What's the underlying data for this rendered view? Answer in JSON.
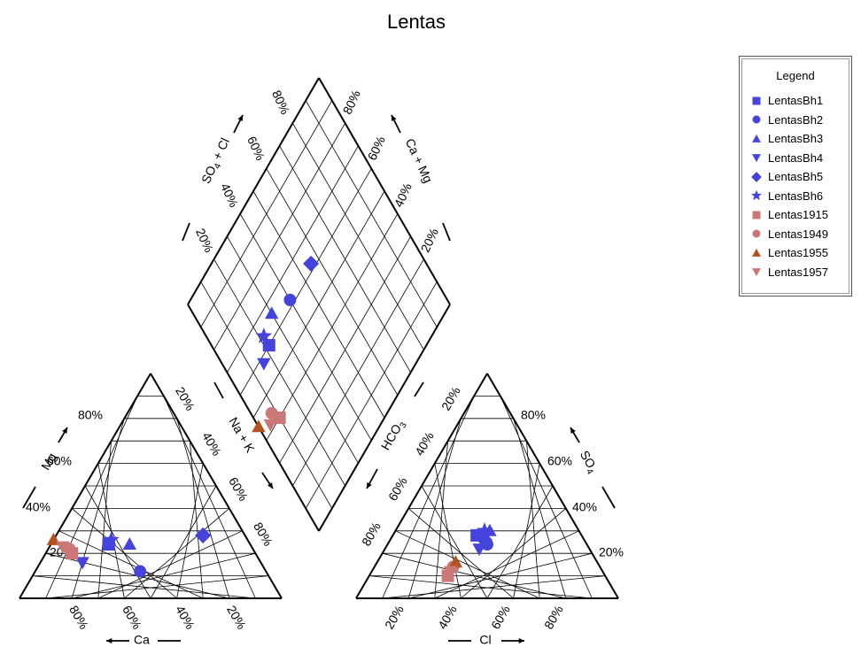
{
  "chart_data": {
    "type": "scatter",
    "subtype": "piper-diagram",
    "title": "Lentas",
    "cation_triangle": {
      "axes": {
        "left": "Mg",
        "bottom": "Ca",
        "right": "Na + K"
      },
      "tick_labels_left": [
        "20%",
        "40%",
        "60%",
        "80%"
      ],
      "tick_labels_bottom": [
        "80%",
        "60%",
        "40%",
        "20%"
      ],
      "tick_labels_right": [
        "20%",
        "40%",
        "60%",
        "80%"
      ]
    },
    "anion_triangle": {
      "axes": {
        "left": "HCO3",
        "bottom": "Cl",
        "right": "SO4"
      },
      "tick_labels_left": [
        "20%",
        "40%",
        "60%",
        "80%"
      ],
      "tick_labels_bottom": [
        "20%",
        "40%",
        "60%",
        "80%"
      ],
      "tick_labels_right": [
        "20%",
        "80%",
        "60%",
        "40%"
      ]
    },
    "diamond": {
      "axes": {
        "upper_left": "SO4 + Cl",
        "upper_right": "Ca + Mg"
      },
      "tick_labels_left": [
        "20%",
        "40%",
        "60%",
        "80%"
      ],
      "tick_labels_right": [
        "80%",
        "60%",
        "40%",
        "20%"
      ]
    },
    "series": [
      {
        "name": "LentasBh1",
        "marker": "square",
        "color": "#4444dd",
        "cation": {
          "Ca": 54,
          "Mg": 24,
          "NaK": 22
        },
        "anion": {
          "HCO3": 40,
          "SO4": 28,
          "Cl": 32
        }
      },
      {
        "name": "LentasBh2",
        "marker": "circle",
        "color": "#4444dd",
        "cation": {
          "Ca": 48,
          "Mg": 12,
          "NaK": 40
        },
        "anion": {
          "HCO3": 38,
          "SO4": 24,
          "Cl": 38
        }
      },
      {
        "name": "LentasBh3",
        "marker": "triangle-up",
        "color": "#4444dd",
        "cation": {
          "Ca": 46,
          "Mg": 24,
          "NaK": 30
        },
        "anion": {
          "HCO3": 34,
          "SO4": 30,
          "Cl": 36
        }
      },
      {
        "name": "LentasBh4",
        "marker": "triangle-down",
        "color": "#4444dd",
        "cation": {
          "Ca": 68,
          "Mg": 16,
          "NaK": 16
        },
        "anion": {
          "HCO3": 42,
          "SO4": 22,
          "Cl": 36
        }
      },
      {
        "name": "LentasBh5",
        "marker": "diamond",
        "color": "#4444dd",
        "cation": {
          "Ca": 16,
          "Mg": 28,
          "NaK": 56
        },
        "anion": {
          "HCO3": 38,
          "SO4": 26,
          "Cl": 36
        }
      },
      {
        "name": "LentasBh6",
        "marker": "star",
        "color": "#4444dd",
        "cation": {
          "Ca": 52,
          "Mg": 26,
          "NaK": 22
        },
        "anion": {
          "HCO3": 36,
          "SO4": 30,
          "Cl": 34
        }
      },
      {
        "name": "Lentas1915",
        "marker": "square",
        "color": "#cc7777",
        "cation": {
          "Ca": 70,
          "Mg": 20,
          "NaK": 10
        },
        "anion": {
          "HCO3": 60,
          "SO4": 10,
          "Cl": 30
        }
      },
      {
        "name": "Lentas1949",
        "marker": "circle",
        "color": "#cc7777",
        "cation": {
          "Ca": 70,
          "Mg": 22,
          "NaK": 8
        },
        "anion": {
          "HCO3": 56,
          "SO4": 14,
          "Cl": 30
        }
      },
      {
        "name": "Lentas1955",
        "marker": "triangle-up",
        "color": "#b3521e",
        "cation": {
          "Ca": 74,
          "Mg": 26,
          "NaK": 0
        },
        "anion": {
          "HCO3": 54,
          "SO4": 16,
          "Cl": 30
        }
      },
      {
        "name": "Lentas1957",
        "marker": "triangle-down",
        "color": "#cc7777",
        "cation": {
          "Ca": 72,
          "Mg": 23,
          "NaK": 5
        },
        "anion": {
          "HCO3": 58,
          "SO4": 12,
          "Cl": 30
        }
      }
    ],
    "legend": {
      "title": "Legend",
      "position": "top-right"
    },
    "grid": true,
    "colors": {
      "axis": "#000000",
      "background": "#ffffff"
    }
  }
}
